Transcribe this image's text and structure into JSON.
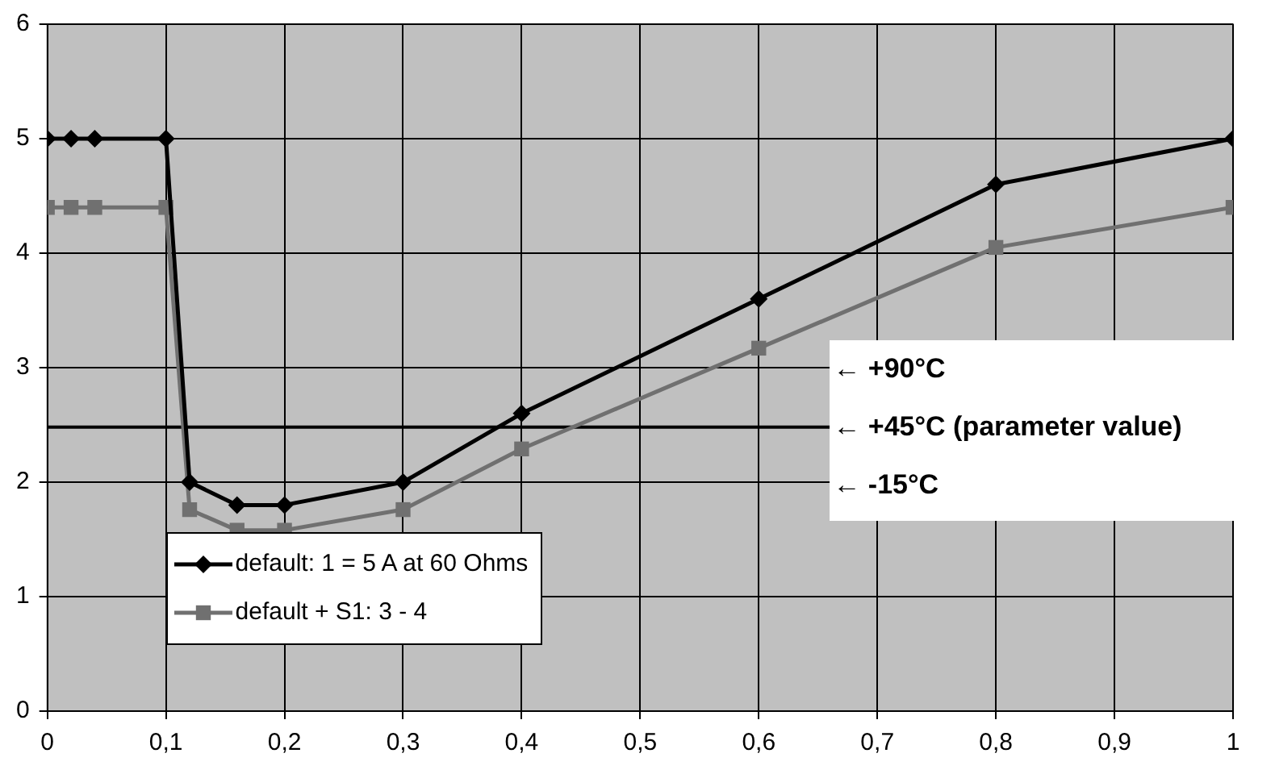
{
  "chart_data": {
    "type": "line",
    "x": [
      0,
      0.02,
      0.04,
      0.1,
      0.12,
      0.16,
      0.2,
      0.3,
      0.4,
      0.6,
      0.8,
      1
    ],
    "series": [
      {
        "name": "default: 1 = 5 A at 60 Ohms",
        "color": "#000000",
        "marker": "diamond",
        "values": [
          5,
          5,
          5,
          5,
          2,
          1.8,
          1.8,
          2,
          2.6,
          3.6,
          4.6,
          5
        ]
      },
      {
        "name": "default + S1: 3 - 4",
        "color": "#707070",
        "marker": "square",
        "values": [
          4.4,
          4.4,
          4.4,
          4.4,
          1.76,
          1.58,
          1.58,
          1.76,
          2.29,
          3.17,
          4.05,
          4.4
        ]
      }
    ],
    "xlim": [
      0,
      1
    ],
    "xticks": [
      0,
      {
        "value": 0.1,
        "label": "0,1"
      },
      {
        "value": 0.2,
        "label": "0,2"
      },
      {
        "value": 0.3,
        "label": "0,3"
      },
      {
        "value": 0.4,
        "label": "0,4"
      },
      {
        "value": 0.5,
        "label": "0,5"
      },
      {
        "value": 0.6,
        "label": "0,6"
      },
      {
        "value": 0.7,
        "label": "0,7"
      },
      {
        "value": 0.8,
        "label": "0,8"
      },
      {
        "value": 0.9,
        "label": "0,9"
      },
      1
    ],
    "ylim": [
      0,
      6
    ],
    "yticks": [
      0,
      1,
      2,
      3,
      4,
      5,
      6
    ],
    "grid": true,
    "legend": "bottom left",
    "ref_lines": [
      {
        "axis": "y",
        "value": 2.48,
        "color": "#000000",
        "label": "← +45°C (parameter value)"
      }
    ],
    "annotations": [
      "← +90°C",
      "← -15°C"
    ]
  }
}
